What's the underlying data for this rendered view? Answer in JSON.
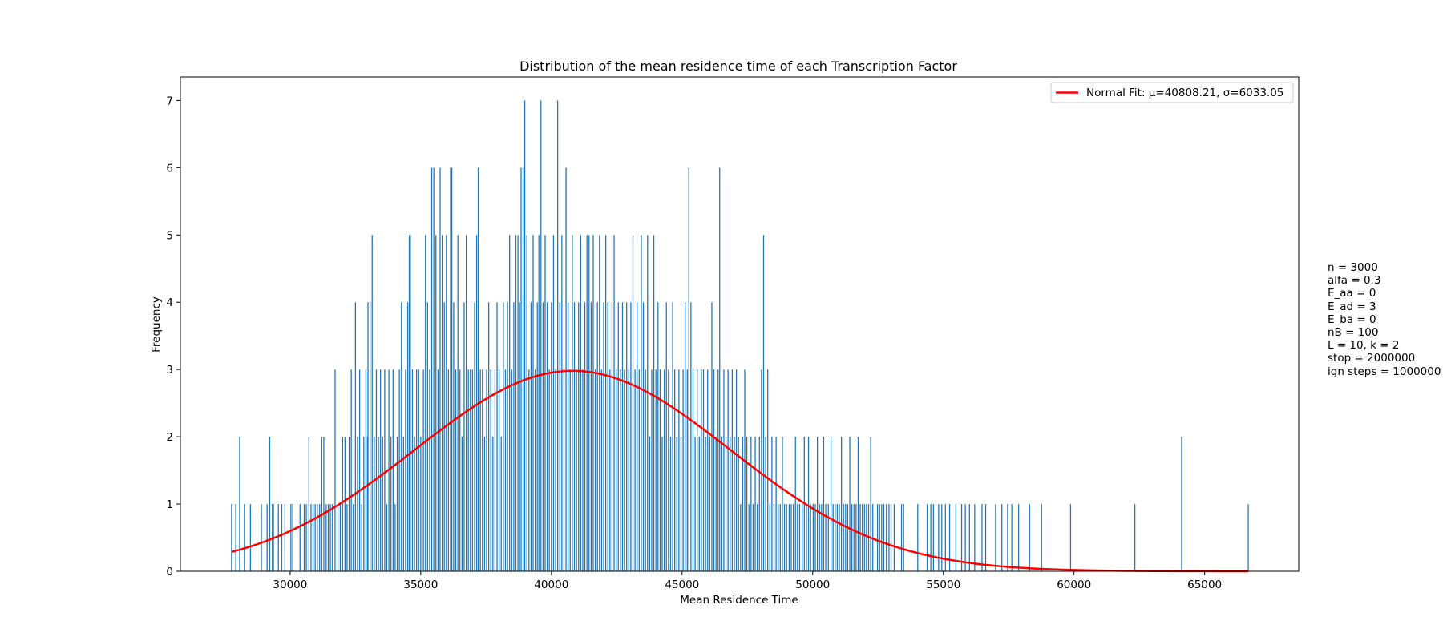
{
  "chart_data": {
    "type": "bar",
    "subtype": "histogram",
    "title": "Distribution of the mean residence time of each Transcription Factor",
    "xlabel": "Mean Residence Time",
    "ylabel": "Frequency",
    "xlim": [
      25800,
      68600
    ],
    "ylim": [
      0,
      7.35
    ],
    "xticks": [
      30000,
      35000,
      40000,
      45000,
      50000,
      55000,
      60000,
      65000
    ],
    "yticks": [
      0,
      1,
      2,
      3,
      4,
      5,
      6,
      7
    ],
    "grid": false,
    "legend_position": "top-right",
    "bar_color": "#1f77b4",
    "bin_range": [
      27750,
      66750
    ],
    "bin_count": 1000,
    "histogram_bins": [
      [
        27760,
        1
      ],
      [
        27920,
        1
      ],
      [
        28070,
        2
      ],
      [
        28250,
        1
      ],
      [
        28480,
        1
      ],
      [
        28900,
        1
      ],
      [
        29120,
        1
      ],
      [
        29220,
        2
      ],
      [
        29320,
        1
      ],
      [
        29360,
        1
      ],
      [
        29550,
        1
      ],
      [
        29680,
        1
      ],
      [
        29800,
        1
      ],
      [
        30030,
        1
      ],
      [
        30100,
        1
      ],
      [
        30380,
        1
      ],
      [
        30540,
        1
      ],
      [
        30620,
        1
      ],
      [
        30720,
        2
      ],
      [
        30800,
        1
      ],
      [
        30880,
        1
      ],
      [
        30960,
        1
      ],
      [
        31040,
        1
      ],
      [
        31130,
        1
      ],
      [
        31210,
        2
      ],
      [
        31290,
        2
      ],
      [
        31380,
        1
      ],
      [
        31460,
        1
      ],
      [
        31540,
        1
      ],
      [
        31620,
        1
      ],
      [
        31720,
        3
      ],
      [
        31830,
        1
      ],
      [
        31920,
        1
      ],
      [
        32010,
        2
      ],
      [
        32100,
        2
      ],
      [
        32180,
        1
      ],
      [
        32260,
        2
      ],
      [
        32340,
        3
      ],
      [
        32420,
        1
      ],
      [
        32500,
        4
      ],
      [
        32580,
        2
      ],
      [
        32660,
        3
      ],
      [
        32740,
        1
      ],
      [
        32820,
        2
      ],
      [
        32900,
        3
      ],
      [
        32980,
        4
      ],
      [
        33060,
        4
      ],
      [
        33140,
        5
      ],
      [
        33220,
        2
      ],
      [
        33300,
        3
      ],
      [
        33380,
        2
      ],
      [
        33460,
        3
      ],
      [
        33540,
        2
      ],
      [
        33620,
        3
      ],
      [
        33700,
        1
      ],
      [
        33780,
        3
      ],
      [
        33860,
        2
      ],
      [
        33940,
        3
      ],
      [
        34020,
        1
      ],
      [
        34100,
        2
      ],
      [
        34180,
        3
      ],
      [
        34260,
        4
      ],
      [
        34340,
        2
      ],
      [
        34420,
        3
      ],
      [
        34500,
        4
      ],
      [
        34560,
        5
      ],
      [
        34600,
        5
      ],
      [
        34680,
        3
      ],
      [
        34760,
        2
      ],
      [
        34840,
        3
      ],
      [
        34920,
        3
      ],
      [
        35000,
        2
      ],
      [
        35100,
        3
      ],
      [
        35180,
        5
      ],
      [
        35260,
        4
      ],
      [
        35340,
        3
      ],
      [
        35420,
        6
      ],
      [
        35500,
        6
      ],
      [
        35580,
        5
      ],
      [
        35660,
        3
      ],
      [
        35740,
        6
      ],
      [
        35820,
        5
      ],
      [
        35900,
        4
      ],
      [
        35980,
        5
      ],
      [
        36060,
        3
      ],
      [
        36140,
        6
      ],
      [
        36190,
        6
      ],
      [
        36260,
        4
      ],
      [
        36340,
        3
      ],
      [
        36420,
        5
      ],
      [
        36500,
        3
      ],
      [
        36580,
        2
      ],
      [
        36660,
        4
      ],
      [
        36740,
        5
      ],
      [
        36820,
        3
      ],
      [
        36900,
        3
      ],
      [
        36980,
        3
      ],
      [
        37060,
        4
      ],
      [
        37140,
        5
      ],
      [
        37200,
        6
      ],
      [
        37280,
        3
      ],
      [
        37360,
        3
      ],
      [
        37440,
        2
      ],
      [
        37520,
        3
      ],
      [
        37600,
        4
      ],
      [
        37680,
        3
      ],
      [
        37760,
        2
      ],
      [
        37840,
        3
      ],
      [
        37920,
        4
      ],
      [
        38000,
        3
      ],
      [
        38080,
        2
      ],
      [
        38160,
        4
      ],
      [
        38240,
        3
      ],
      [
        38320,
        4
      ],
      [
        38400,
        5
      ],
      [
        38480,
        3
      ],
      [
        38560,
        4
      ],
      [
        38640,
        5
      ],
      [
        38720,
        5
      ],
      [
        38780,
        4
      ],
      [
        38840,
        6
      ],
      [
        38920,
        6
      ],
      [
        38980,
        7
      ],
      [
        39060,
        5
      ],
      [
        39140,
        3
      ],
      [
        39220,
        4
      ],
      [
        39300,
        5
      ],
      [
        39380,
        3
      ],
      [
        39460,
        4
      ],
      [
        39520,
        5
      ],
      [
        39600,
        7
      ],
      [
        39680,
        4
      ],
      [
        39760,
        5
      ],
      [
        39840,
        4
      ],
      [
        39920,
        3
      ],
      [
        40000,
        4
      ],
      [
        40080,
        5
      ],
      [
        40160,
        3
      ],
      [
        40240,
        7
      ],
      [
        40320,
        4
      ],
      [
        40400,
        5
      ],
      [
        40480,
        3
      ],
      [
        40560,
        6
      ],
      [
        40640,
        4
      ],
      [
        40720,
        3
      ],
      [
        40800,
        5
      ],
      [
        40880,
        4
      ],
      [
        40960,
        3
      ],
      [
        41040,
        4
      ],
      [
        41120,
        5
      ],
      [
        41200,
        3
      ],
      [
        41280,
        4
      ],
      [
        41360,
        5
      ],
      [
        41440,
        5
      ],
      [
        41520,
        4
      ],
      [
        41600,
        5
      ],
      [
        41680,
        3
      ],
      [
        41760,
        4
      ],
      [
        41840,
        5
      ],
      [
        41920,
        3
      ],
      [
        42000,
        4
      ],
      [
        42080,
        5
      ],
      [
        42160,
        4
      ],
      [
        42240,
        3
      ],
      [
        42320,
        4
      ],
      [
        42400,
        5
      ],
      [
        42480,
        3
      ],
      [
        42560,
        4
      ],
      [
        42640,
        3
      ],
      [
        42720,
        4
      ],
      [
        42800,
        3
      ],
      [
        42880,
        4
      ],
      [
        32960,
        2
      ],
      [
        42960,
        3
      ],
      [
        43040,
        4
      ],
      [
        43120,
        5
      ],
      [
        43200,
        3
      ],
      [
        43280,
        4
      ],
      [
        43360,
        3
      ],
      [
        43440,
        5
      ],
      [
        43520,
        4
      ],
      [
        43600,
        3
      ],
      [
        43680,
        5
      ],
      [
        43760,
        2
      ],
      [
        43840,
        3
      ],
      [
        43920,
        5
      ],
      [
        44000,
        3
      ],
      [
        44080,
        4
      ],
      [
        44160,
        3
      ],
      [
        44240,
        2
      ],
      [
        44320,
        3
      ],
      [
        44400,
        4
      ],
      [
        44480,
        3
      ],
      [
        44560,
        2
      ],
      [
        44640,
        4
      ],
      [
        44720,
        3
      ],
      [
        44800,
        2
      ],
      [
        44880,
        3
      ],
      [
        44960,
        2
      ],
      [
        45040,
        3
      ],
      [
        45120,
        4
      ],
      [
        45200,
        3
      ],
      [
        45260,
        6
      ],
      [
        45340,
        4
      ],
      [
        45420,
        3
      ],
      [
        45500,
        2
      ],
      [
        45580,
        3
      ],
      [
        45660,
        2
      ],
      [
        45740,
        3
      ],
      [
        45820,
        3
      ],
      [
        45900,
        2
      ],
      [
        45980,
        3
      ],
      [
        46060,
        2
      ],
      [
        46140,
        4
      ],
      [
        46220,
        3
      ],
      [
        46300,
        2
      ],
      [
        46380,
        3
      ],
      [
        46440,
        6
      ],
      [
        46520,
        2
      ],
      [
        46600,
        3
      ],
      [
        46680,
        2
      ],
      [
        46760,
        3
      ],
      [
        46840,
        2
      ],
      [
        46920,
        3
      ],
      [
        47000,
        2
      ],
      [
        47080,
        3
      ],
      [
        47160,
        2
      ],
      [
        47240,
        1
      ],
      [
        47320,
        2
      ],
      [
        47400,
        3
      ],
      [
        47480,
        2
      ],
      [
        47560,
        1
      ],
      [
        47640,
        2
      ],
      [
        47720,
        1
      ],
      [
        47800,
        2
      ],
      [
        47880,
        1
      ],
      [
        47960,
        2
      ],
      [
        48040,
        3
      ],
      [
        48120,
        5
      ],
      [
        48200,
        2
      ],
      [
        48280,
        3
      ],
      [
        48360,
        1
      ],
      [
        48440,
        2
      ],
      [
        48520,
        1
      ],
      [
        48600,
        2
      ],
      [
        48680,
        1
      ],
      [
        48760,
        1
      ],
      [
        48840,
        2
      ],
      [
        48920,
        1
      ],
      [
        49000,
        1
      ],
      [
        49100,
        1
      ],
      [
        49180,
        1
      ],
      [
        49260,
        1
      ],
      [
        49340,
        2
      ],
      [
        49420,
        1
      ],
      [
        49500,
        1
      ],
      [
        49600,
        1
      ],
      [
        49680,
        2
      ],
      [
        49760,
        1
      ],
      [
        49840,
        2
      ],
      [
        49920,
        1
      ],
      [
        50020,
        1
      ],
      [
        50100,
        1
      ],
      [
        50180,
        2
      ],
      [
        50260,
        1
      ],
      [
        50340,
        1
      ],
      [
        50420,
        2
      ],
      [
        50500,
        1
      ],
      [
        50600,
        1
      ],
      [
        50700,
        2
      ],
      [
        50780,
        1
      ],
      [
        50860,
        1
      ],
      [
        50940,
        1
      ],
      [
        51020,
        1
      ],
      [
        51100,
        2
      ],
      [
        51180,
        1
      ],
      [
        51260,
        1
      ],
      [
        51340,
        1
      ],
      [
        51420,
        2
      ],
      [
        51500,
        1
      ],
      [
        51580,
        1
      ],
      [
        51660,
        1
      ],
      [
        51740,
        2
      ],
      [
        51820,
        1
      ],
      [
        51900,
        1
      ],
      [
        51980,
        1
      ],
      [
        52060,
        1
      ],
      [
        52140,
        1
      ],
      [
        52220,
        2
      ],
      [
        52300,
        1
      ],
      [
        52480,
        1
      ],
      [
        52560,
        1
      ],
      [
        52640,
        1
      ],
      [
        52720,
        1
      ],
      [
        52820,
        1
      ],
      [
        52920,
        1
      ],
      [
        53000,
        1
      ],
      [
        53120,
        1
      ],
      [
        53400,
        1
      ],
      [
        53480,
        1
      ],
      [
        54020,
        1
      ],
      [
        54380,
        1
      ],
      [
        54520,
        1
      ],
      [
        54620,
        1
      ],
      [
        54820,
        1
      ],
      [
        54940,
        1
      ],
      [
        55080,
        1
      ],
      [
        55240,
        1
      ],
      [
        55480,
        1
      ],
      [
        55700,
        1
      ],
      [
        55840,
        1
      ],
      [
        56000,
        1
      ],
      [
        56200,
        1
      ],
      [
        56480,
        1
      ],
      [
        56620,
        1
      ],
      [
        57000,
        1
      ],
      [
        57240,
        1
      ],
      [
        57460,
        1
      ],
      [
        57620,
        1
      ],
      [
        57880,
        1
      ],
      [
        58300,
        1
      ],
      [
        58760,
        1
      ],
      [
        59870,
        1
      ],
      [
        62330,
        1
      ],
      [
        64120,
        2
      ],
      [
        66670,
        1
      ]
    ],
    "series": [
      {
        "name": "Normal Fit: μ=40808.21, σ=6033.05",
        "type": "line",
        "color": "#ff0000",
        "mu": 40808.21,
        "sigma": 6033.05,
        "peak": 2.98,
        "x_range": [
          27760,
          66670
        ]
      }
    ]
  },
  "params_text": [
    "n = 3000",
    "alfa = 0.3",
    "E_aa = 0",
    "E_ad = 3",
    "E_ba = 0",
    "nB = 100",
    "L = 10, k = 2",
    "stop = 2000000",
    "ign steps = 1000000"
  ]
}
